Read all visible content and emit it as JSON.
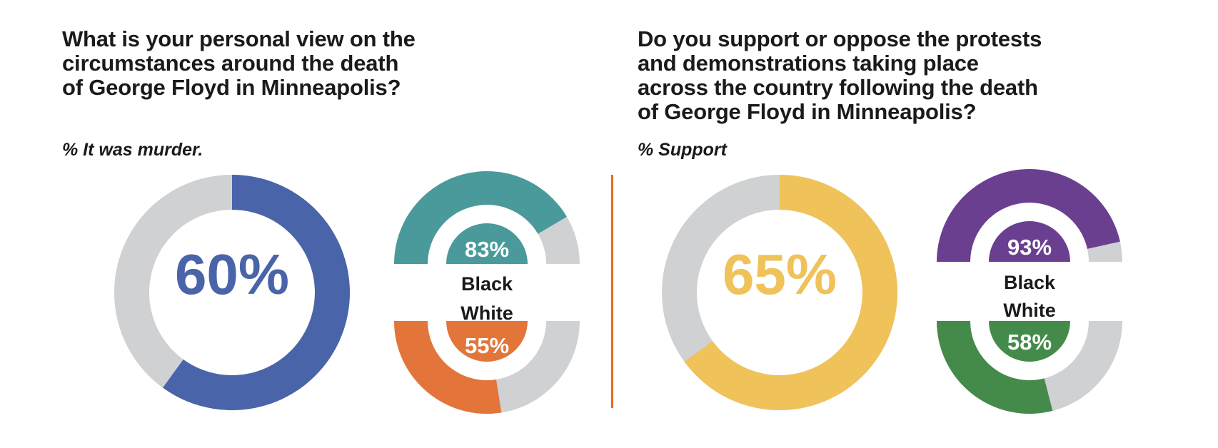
{
  "colors": {
    "track": "#d0d1d3",
    "blue": "#4a64a9",
    "teal": "#4a9a9b",
    "orange": "#e3753a",
    "yellow": "#efc25a",
    "purple": "#6a3f90",
    "green": "#448b4b",
    "divider": "#e66b1c"
  },
  "charts": [
    {
      "question": "What is your personal view on the\ncircumstances around the death\nof George Floyd in Minneapolis?",
      "subtitle": "% It was murder.",
      "overall_label": "60%",
      "black_label": "83%",
      "white_label": "55%",
      "group_top": "Black",
      "group_bottom": "White"
    },
    {
      "question": "Do you support or oppose the protests\nand demonstrations taking place\nacross the country following the death\nof George Floyd in Minneapolis?",
      "subtitle": "% Support",
      "overall_label": "65%",
      "black_label": "93%",
      "white_label": "58%",
      "group_top": "Black",
      "group_bottom": "White"
    }
  ],
  "chart_data": [
    {
      "type": "pie",
      "title": "What is your personal view on the circumstances around the death of George Floyd in Minneapolis?",
      "subtitle": "% It was murder.",
      "overall": {
        "value": 60,
        "color": "#4a64a9"
      },
      "groups": [
        {
          "name": "Black",
          "value": 83,
          "color": "#4a9a9b"
        },
        {
          "name": "White",
          "value": 55,
          "color": "#e3753a"
        }
      ]
    },
    {
      "type": "pie",
      "title": "Do you support or oppose the protests and demonstrations taking place across the country following the death of George Floyd in Minneapolis?",
      "subtitle": "% Support",
      "overall": {
        "value": 65,
        "color": "#efc25a"
      },
      "groups": [
        {
          "name": "Black",
          "value": 93,
          "color": "#6a3f90"
        },
        {
          "name": "White",
          "value": 58,
          "color": "#448b4b"
        }
      ]
    }
  ]
}
